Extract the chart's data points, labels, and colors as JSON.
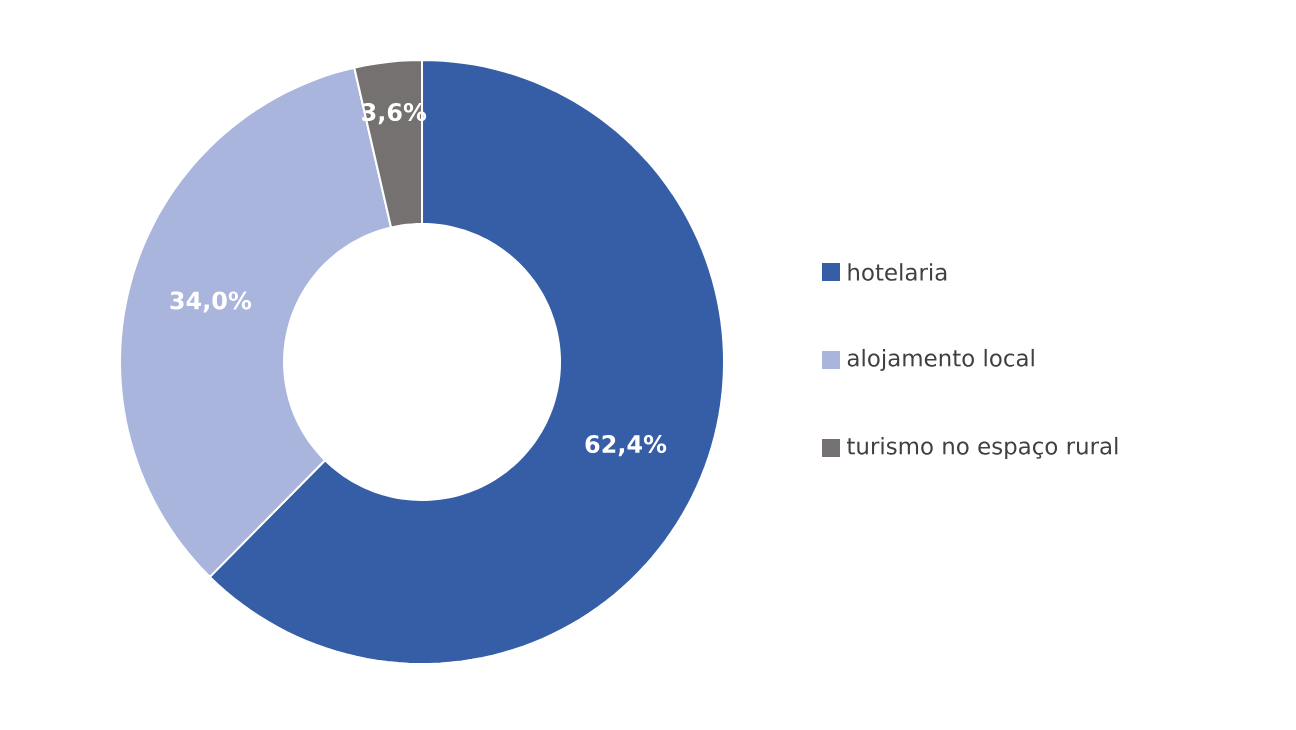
{
  "chart_data": {
    "type": "donut",
    "categories": [
      "hotelaria",
      "alojamento local",
      "turismo no espaço rural"
    ],
    "values": [
      62.4,
      34.0,
      3.6
    ],
    "value_labels": [
      "62,4%",
      "34,0%",
      "3,6%"
    ],
    "colors": [
      "#365ea6",
      "#a9b5dc",
      "#767171"
    ],
    "legend": "right"
  }
}
